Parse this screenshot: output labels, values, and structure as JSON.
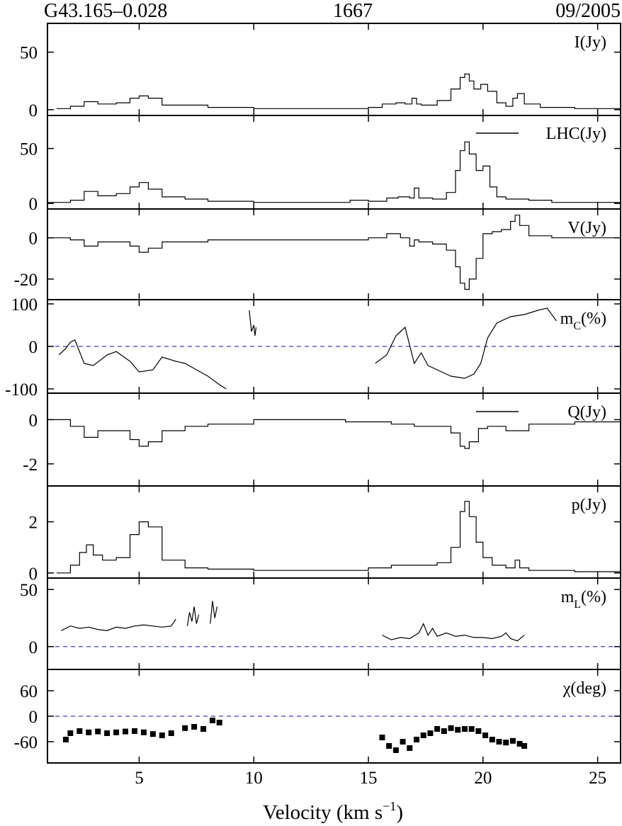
{
  "header": {
    "source": "G43.165–0.028",
    "frequency": "1667",
    "epoch": "09/2005"
  },
  "colors": {
    "series_black": "#000000",
    "series_red": "#d42a1a",
    "zero_line": "#3a3acc"
  },
  "chart_data": {
    "type": "line",
    "layout": "8 vertically stacked panels sharing the x axis",
    "xlabel": "Velocity (km s",
    "xlabel_superscript": "−1",
    "xlabel_suffix": ")",
    "xlim": [
      1.0,
      26.0
    ],
    "x_ticks": [
      5,
      10,
      15,
      20,
      25
    ],
    "x_tick_labels": [
      "5",
      "10",
      "15",
      "20",
      "25"
    ],
    "panels": [
      {
        "id": "I",
        "label": "I(Jy)",
        "ylim": [
          -5,
          75
        ],
        "y_ticks": [
          0,
          50
        ],
        "y_tick_labels": [
          "0",
          "50"
        ],
        "zero_line": false,
        "step": true,
        "series": [
          {
            "name": "I(Jy)",
            "color": "#000000",
            "x": [
              1.4,
              2.0,
              2.6,
              3.2,
              4.0,
              4.6,
              5.0,
              5.4,
              6.0,
              8.0,
              10.0,
              12.0,
              14.0,
              15.0,
              15.6,
              16.2,
              16.6,
              16.9,
              17.1,
              17.3,
              18.0,
              18.6,
              19.0,
              19.2,
              19.4,
              19.6,
              19.9,
              20.2,
              20.6,
              21.0,
              21.3,
              21.5,
              21.8,
              22.5,
              24.0,
              26.0
            ],
            "y": [
              1,
              3,
              7,
              5,
              6,
              10,
              12,
              10,
              4,
              2,
              1,
              1,
              1,
              2,
              5,
              6,
              5,
              10,
              5,
              4,
              8,
              18,
              28,
              31,
              25,
              18,
              22,
              16,
              6,
              3,
              10,
              14,
              5,
              2,
              1,
              1
            ]
          }
        ]
      },
      {
        "id": "circular",
        "label": "",
        "ylim": [
          -5,
          80
        ],
        "y_ticks": [
          0,
          50
        ],
        "y_tick_labels": [
          "0",
          "50"
        ],
        "zero_line": false,
        "step": true,
        "legend": "top-right",
        "series": [
          {
            "name": "LHC(Jy)",
            "color": "#000000",
            "x": [
              1.0,
              2.0,
              2.6,
              3.2,
              4.0,
              4.6,
              5.0,
              5.4,
              6.0,
              7.0,
              8.0,
              10.0,
              13.0,
              14.2,
              15.0,
              15.8,
              16.3,
              16.8,
              17.0,
              17.2,
              17.8,
              18.4,
              18.8,
              19.0,
              19.2,
              19.4,
              19.7,
              20.0,
              20.3,
              20.6,
              21.0,
              22.0,
              23.0,
              26.0
            ],
            "y": [
              1,
              3,
              11,
              7,
              9,
              15,
              19,
              13,
              6,
              4,
              2,
              1,
              1,
              3,
              2,
              5,
              6,
              5,
              14,
              5,
              4,
              10,
              30,
              48,
              56,
              45,
              30,
              34,
              15,
              6,
              4,
              3,
              1,
              1
            ]
          }
        ]
      },
      {
        "id": "V",
        "label": "V(Jy)",
        "ylim": [
          -30,
          14
        ],
        "y_ticks": [
          0,
          -20
        ],
        "y_tick_labels": [
          "0",
          "-20"
        ],
        "zero_line": false,
        "step": true,
        "series": [
          {
            "name": "V(Jy)",
            "color": "#000000",
            "x": [
              1.0,
              2.0,
              2.6,
              3.2,
              4.0,
              4.6,
              5.0,
              5.4,
              6.0,
              8.0,
              10.0,
              12.0,
              14.0,
              15.0,
              15.8,
              16.4,
              16.8,
              17.0,
              17.2,
              17.8,
              18.4,
              18.8,
              19.0,
              19.2,
              19.4,
              19.7,
              20.0,
              20.4,
              20.8,
              21.2,
              21.4,
              21.6,
              22.0,
              23.0,
              26.0
            ],
            "y": [
              0,
              -1,
              -4,
              -2,
              -2,
              -4,
              -7,
              -5,
              -2,
              -1,
              -1,
              -1,
              -1,
              0,
              2,
              0,
              -4,
              -1,
              -2,
              -3,
              -6,
              -14,
              -22,
              -25,
              -20,
              -10,
              2,
              3,
              4,
              8,
              11,
              6,
              1,
              0,
              0
            ]
          }
        ]
      },
      {
        "id": "mc",
        "label": "m",
        "label_subscript": "C",
        "label_suffix": "(%)",
        "ylim": [
          -110,
          110
        ],
        "y_ticks": [
          100,
          0,
          -100
        ],
        "y_tick_labels": [
          "100",
          "0",
          "-100"
        ],
        "zero_line": true,
        "step": false,
        "series": [
          {
            "name": "mc-a",
            "color": "#000000",
            "x": [
              1.5,
              1.8,
              2.0,
              2.2,
              2.6,
              3.0,
              3.6,
              4.0,
              4.6,
              5.0,
              5.6,
              6.0,
              6.6,
              7.0,
              7.5,
              8.0,
              8.5,
              8.8
            ],
            "y": [
              -20,
              -5,
              10,
              15,
              -40,
              -45,
              -20,
              -12,
              -35,
              -60,
              -55,
              -25,
              -35,
              -40,
              -55,
              -70,
              -90,
              -100
            ]
          },
          {
            "name": "mc-b",
            "color": "#000000",
            "x": [
              9.8,
              9.85,
              9.9,
              10.0,
              10.05,
              10.1
            ],
            "y": [
              85,
              60,
              35,
              50,
              25,
              45
            ]
          },
          {
            "name": "mc-c",
            "color": "#000000",
            "x": [
              15.3,
              15.8,
              16.2,
              16.6,
              17.0,
              17.3,
              17.6,
              18.0,
              18.6,
              19.2,
              19.6,
              19.9,
              20.2,
              20.6,
              21.2,
              21.8,
              22.4,
              22.8,
              23.2
            ],
            "y": [
              -40,
              -20,
              25,
              45,
              -40,
              -15,
              -45,
              -55,
              -70,
              -75,
              -65,
              -40,
              20,
              55,
              70,
              75,
              85,
              90,
              60
            ]
          }
        ]
      },
      {
        "id": "linear",
        "label": "",
        "ylim": [
          -3,
          1.2
        ],
        "y_ticks": [
          0,
          -2
        ],
        "y_tick_labels": [
          "0",
          "-2"
        ],
        "zero_line": false,
        "step": true,
        "legend": "right",
        "series": [
          {
            "name": "Q(Jy)",
            "color": "#000000",
            "x": [
              1.0,
              2.0,
              2.6,
              3.2,
              4.0,
              4.6,
              5.0,
              5.4,
              6.0,
              7.0,
              8.0,
              10.0,
              12.0,
              14.0,
              15.0,
              16.0,
              17.0,
              18.0,
              18.6,
              19.0,
              19.2,
              19.4,
              19.8,
              20.2,
              21.0,
              22.0,
              24.0,
              26.0
            ],
            "y": [
              0,
              -0.3,
              -0.8,
              -0.5,
              -0.5,
              -0.9,
              -1.2,
              -1.0,
              -0.5,
              -0.3,
              -0.2,
              0,
              0,
              -0.1,
              -0.1,
              -0.2,
              -0.3,
              -0.3,
              -0.6,
              -1.2,
              -1.3,
              -1.0,
              -0.4,
              -0.3,
              -0.5,
              -0.2,
              -0.1,
              0
            ]
          }
        ]
      },
      {
        "id": "p",
        "label": "p(Jy)",
        "ylim": [
          -0.2,
          3.4
        ],
        "y_ticks": [
          0,
          2
        ],
        "y_tick_labels": [
          "0",
          "2"
        ],
        "zero_line": false,
        "step": true,
        "series": [
          {
            "name": "p(Jy)",
            "color": "#000000",
            "x": [
              1.4,
              2.0,
              2.4,
              2.7,
              3.0,
              3.4,
              4.0,
              4.6,
              5.0,
              5.4,
              6.0,
              7.0,
              8.0,
              10.0,
              12.0,
              14.0,
              15.0,
              16.0,
              17.0,
              18.0,
              18.6,
              19.0,
              19.2,
              19.4,
              19.7,
              20.0,
              20.4,
              21.0,
              21.4,
              21.6,
              22.0,
              24.0,
              26.0
            ],
            "y": [
              0,
              0.3,
              0.8,
              1.1,
              0.7,
              0.5,
              0.6,
              1.5,
              2.0,
              1.8,
              0.5,
              0.2,
              0.15,
              0.1,
              0.1,
              0.1,
              0.2,
              0.3,
              0.3,
              0.4,
              1.0,
              2.4,
              2.8,
              2.2,
              1.2,
              0.6,
              0.3,
              0.2,
              0.5,
              0.2,
              0.1,
              0.05,
              0.05
            ]
          }
        ]
      },
      {
        "id": "mL",
        "label": "m",
        "label_subscript": "L",
        "label_suffix": "(%)",
        "ylim": [
          -20,
          60
        ],
        "y_ticks": [
          50,
          0
        ],
        "y_tick_labels": [
          "50",
          "0"
        ],
        "zero_line": true,
        "step": false,
        "series": [
          {
            "name": "mL-a",
            "color": "#000000",
            "x": [
              1.6,
              2.0,
              2.4,
              2.8,
              3.2,
              3.6,
              4.0,
              4.4,
              4.8,
              5.2,
              5.6,
              6.0,
              6.4,
              6.6
            ],
            "y": [
              14,
              18,
              16,
              17,
              15,
              14,
              17,
              16,
              18,
              19,
              18,
              17,
              18,
              24
            ]
          },
          {
            "name": "mL-b",
            "color": "#000000",
            "x": [
              7.1,
              7.2,
              7.3,
              7.4,
              7.5,
              7.6
            ],
            "y": [
              18,
              30,
              22,
              35,
              20,
              28
            ]
          },
          {
            "name": "mL-c",
            "color": "#000000",
            "x": [
              8.1,
              8.2,
              8.3,
              8.4
            ],
            "y": [
              20,
              40,
              25,
              35
            ]
          },
          {
            "name": "mL-d",
            "color": "#000000",
            "x": [
              15.6,
              16.0,
              16.4,
              16.8,
              17.2,
              17.4,
              17.6,
              17.8,
              18.0,
              18.4,
              18.8,
              19.2,
              19.6,
              20.0,
              20.4,
              20.8,
              21.0,
              21.2,
              21.5,
              21.8
            ],
            "y": [
              10,
              6,
              8,
              7,
              12,
              20,
              10,
              16,
              9,
              12,
              9,
              10,
              8,
              8,
              7,
              9,
              12,
              7,
              5,
              10
            ]
          }
        ]
      },
      {
        "id": "chi",
        "label": "χ(deg)",
        "ylim": [
          -110,
          110
        ],
        "y_ticks": [
          60,
          0,
          -60
        ],
        "y_tick_labels": [
          "60",
          "0",
          "-60"
        ],
        "zero_line": true,
        "step": false,
        "series": [
          {
            "name": "chi",
            "color": "#000000",
            "x": [
              1.8,
              2.0,
              2.4,
              2.8,
              3.2,
              3.6,
              4.0,
              4.4,
              4.8,
              5.2,
              5.6,
              6.0,
              6.4,
              7.0,
              7.4,
              7.8,
              8.2,
              8.5,
              15.6,
              15.9,
              16.2,
              16.5,
              16.8,
              17.1,
              17.4,
              17.7,
              18.0,
              18.3,
              18.6,
              18.9,
              19.2,
              19.5,
              19.8,
              20.1,
              20.4,
              20.7,
              21.0,
              21.3,
              21.6,
              21.8
            ],
            "y": [
              -55,
              -40,
              -35,
              -38,
              -36,
              -40,
              -38,
              -36,
              -35,
              -38,
              -42,
              -45,
              -40,
              -28,
              -25,
              -30,
              -10,
              -15,
              -50,
              -70,
              -80,
              -60,
              -75,
              -55,
              -45,
              -40,
              -30,
              -35,
              -28,
              -32,
              -30,
              -30,
              -35,
              -45,
              -55,
              -60,
              -62,
              -58,
              -65,
              -70
            ]
          }
        ]
      }
    ]
  }
}
